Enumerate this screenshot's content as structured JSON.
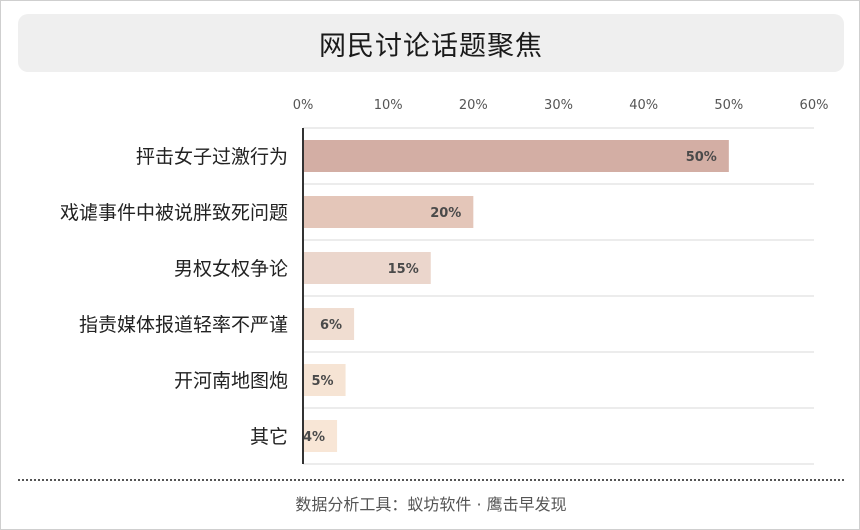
{
  "chart_data": {
    "type": "bar",
    "orientation": "horizontal",
    "title": "网民讨论话题聚焦",
    "categories": [
      "抨击女子过激行为",
      "戏谑事件中被说胖致死问题",
      "男权女权争论",
      "指责媒体报道轻率不严谨",
      "开河南地图炮",
      "其它"
    ],
    "values": [
      50,
      20,
      15,
      6,
      5,
      4
    ],
    "value_labels": [
      "50%",
      "20%",
      "15%",
      "6%",
      "5%",
      "4%"
    ],
    "xlim": [
      0,
      60
    ],
    "xticks": [
      0,
      10,
      20,
      30,
      40,
      50,
      60
    ],
    "xtick_labels": [
      "0%",
      "10%",
      "20%",
      "30%",
      "40%",
      "50%",
      "60%"
    ],
    "x_axis_position": "top",
    "grid": "horizontal row separators",
    "colors": [
      "#d3aea4",
      "#e4c6b9",
      "#ebd6cc",
      "#f0ddd1",
      "#f6e4d4",
      "#f8e6d6"
    ]
  },
  "footer": {
    "source": "数据分析工具：蚁坊软件 · 鹰击早发现"
  }
}
